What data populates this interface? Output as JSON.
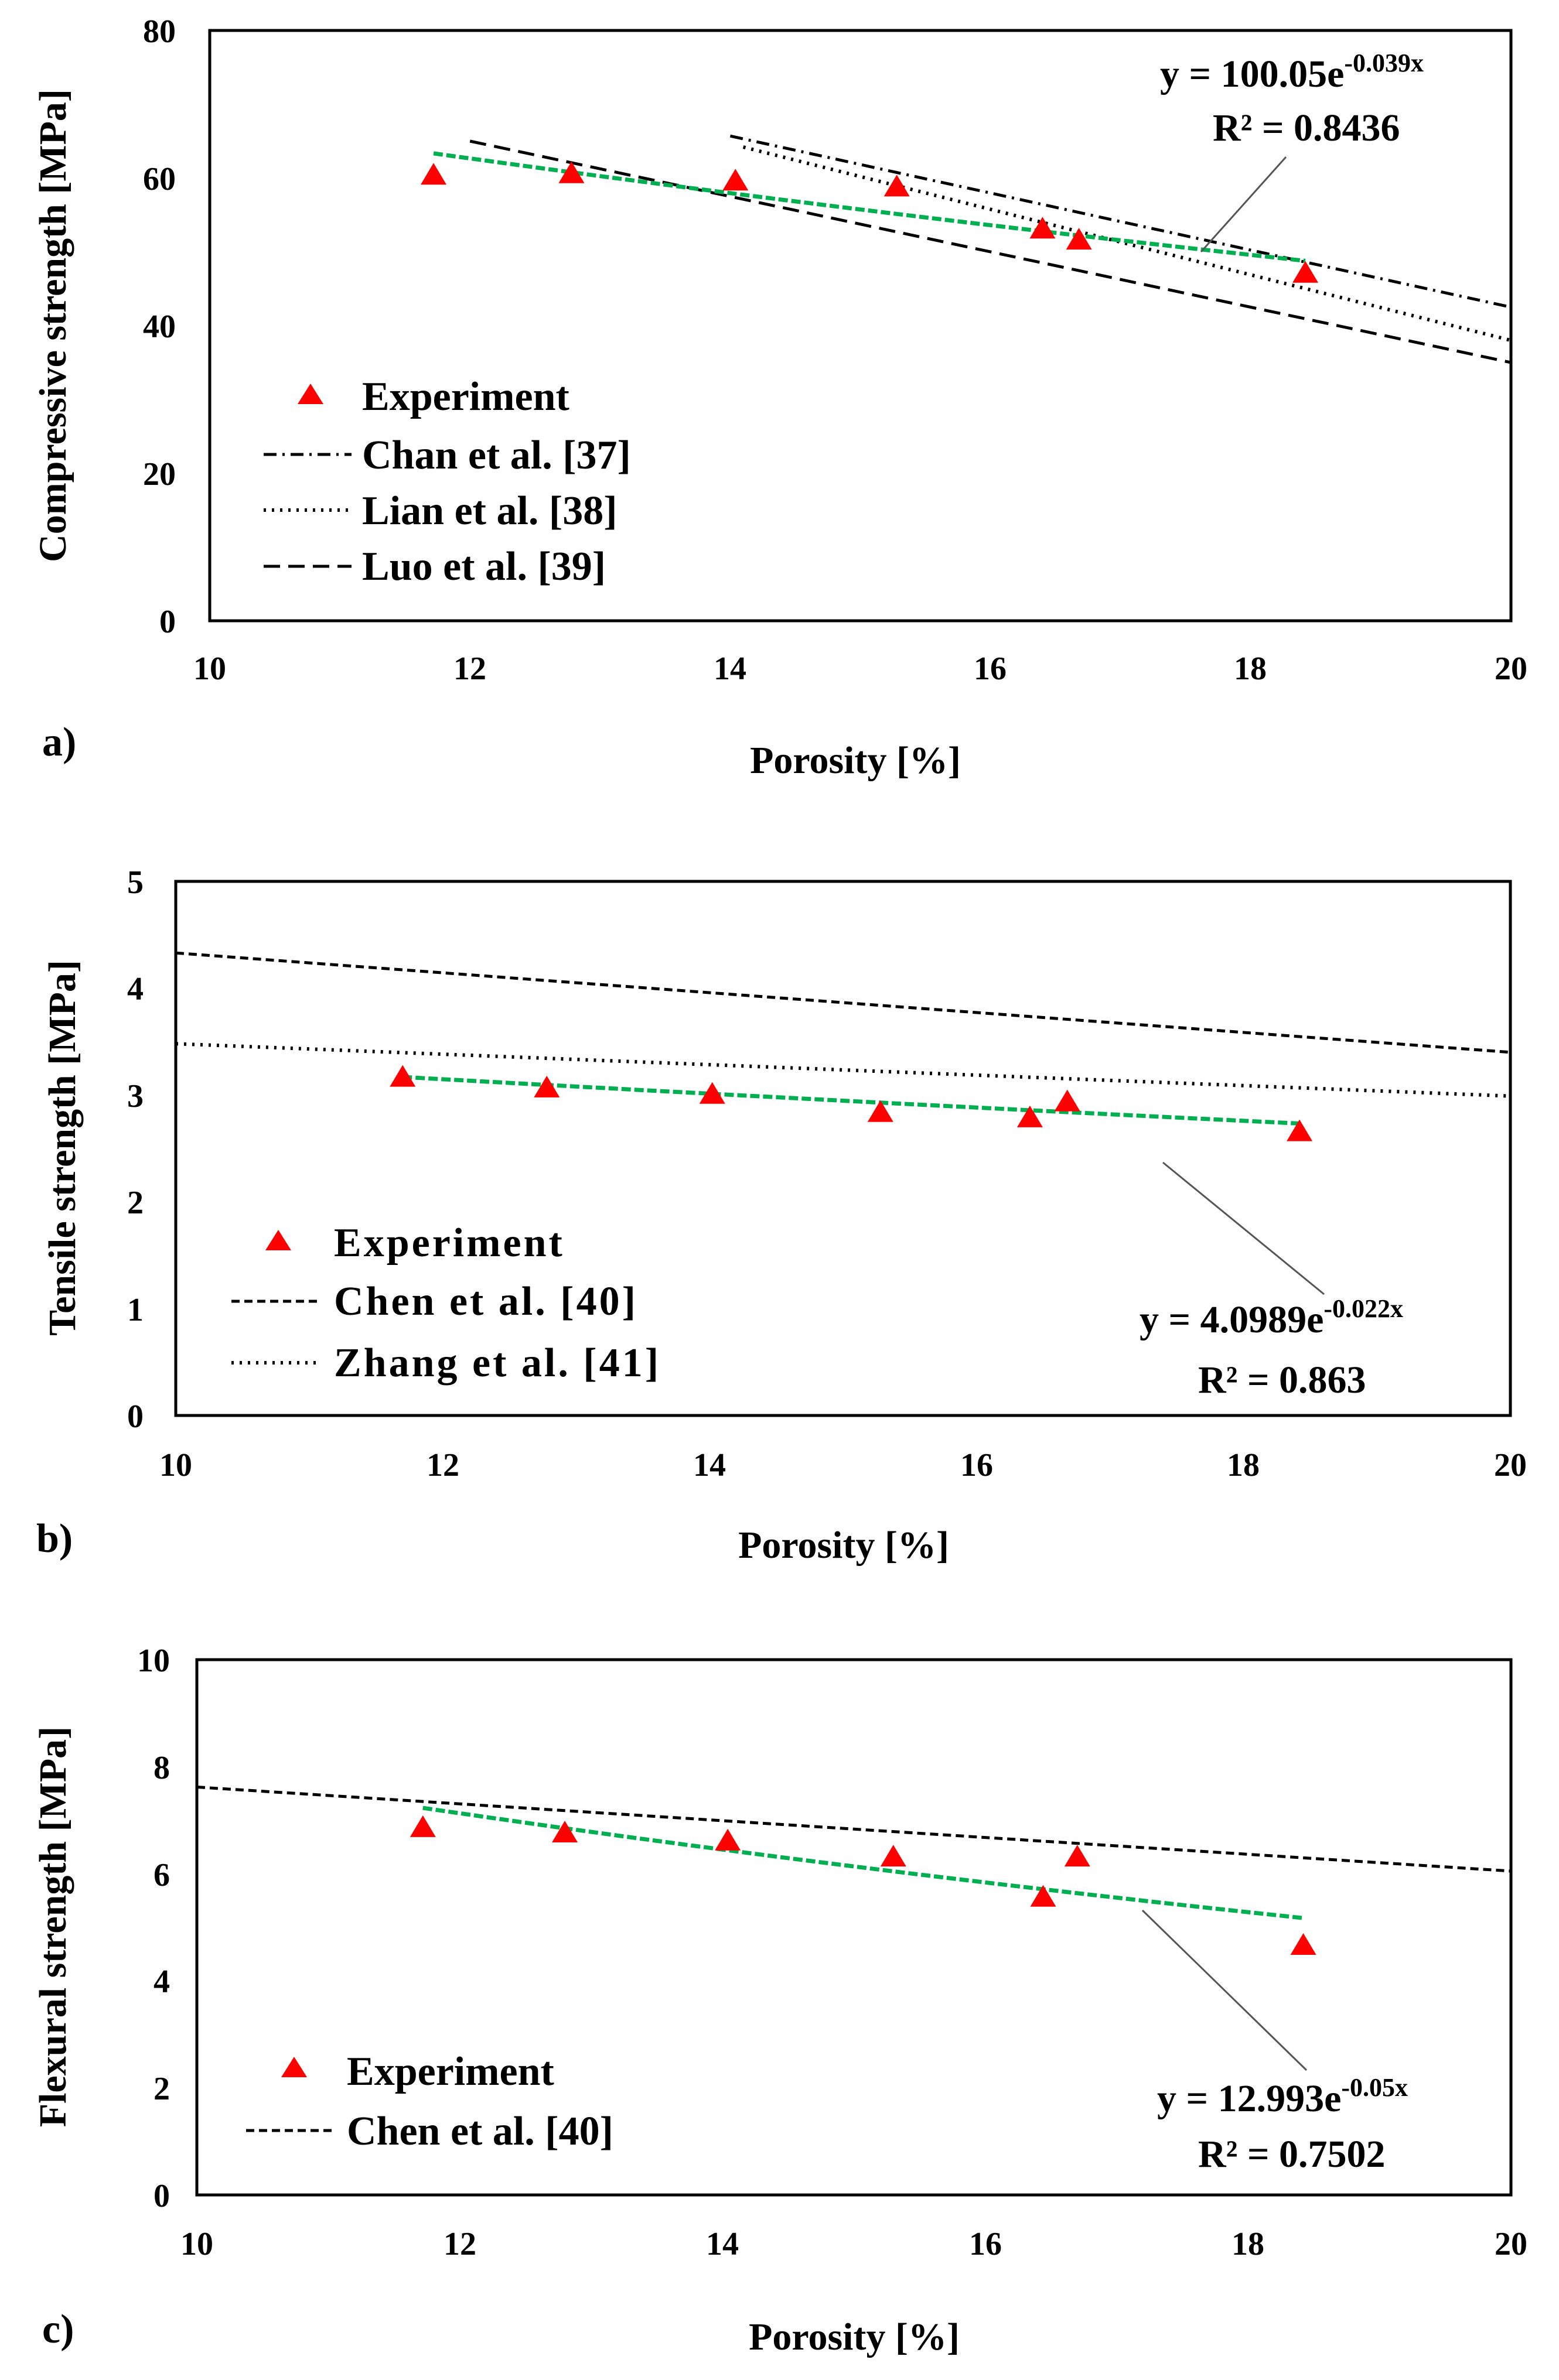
{
  "panels": [
    {
      "panel_label": "a)",
      "annotation": {
        "eq_prefix": "y = 100.05e",
        "eq_exp": "-0.039x",
        "r2": "R² = 0.8436"
      }
    },
    {
      "panel_label": "b)",
      "annotation": {
        "eq_prefix": "y = 4.0989e",
        "eq_exp": "-0.022x",
        "r2": "R² = 0.863"
      }
    },
    {
      "panel_label": "c)",
      "annotation": {
        "eq_prefix": "y = 12.993e",
        "eq_exp": "-0.05x",
        "r2": "R² = 0.7502"
      }
    }
  ],
  "colors": {
    "experiment": "#ff0000",
    "fit": "#00b050",
    "reference": "#000000",
    "axis": "#000000"
  },
  "chart_data": [
    {
      "type": "scatter",
      "title": "",
      "xlabel": "Porosity [%]",
      "ylabel": "Compressive strength  [MPa]",
      "xlim": [
        10,
        20
      ],
      "ylim": [
        0,
        80
      ],
      "xticks": [
        "10",
        "12",
        "14",
        "16",
        "18",
        "20"
      ],
      "yticks": [
        "0",
        "20",
        "40",
        "60",
        "80"
      ],
      "legend_position": "bottom-left",
      "series": [
        {
          "name": "Experiment",
          "kind": "points",
          "x": [
            11.72,
            12.78,
            14.04,
            15.28,
            16.4,
            16.68,
            18.42
          ],
          "y": [
            60.3,
            60.5,
            59.5,
            58.7,
            53.0,
            51.5,
            47.0
          ]
        },
        {
          "name": "Chan et al. [37]",
          "kind": "line",
          "style": "dashdot",
          "x": [
            14.0,
            20.0
          ],
          "y": [
            65.7,
            42.5
          ]
        },
        {
          "name": "Lian et al. [38]",
          "kind": "line",
          "style": "dotted",
          "x": [
            14.1,
            20.0
          ],
          "y": [
            64.2,
            38.0
          ]
        },
        {
          "name": "Luo et al. [39]",
          "kind": "line",
          "style": "dashed",
          "x": [
            12.0,
            20.0
          ],
          "y": [
            65.0,
            35.0
          ]
        }
      ],
      "fit": {
        "a": 100.05,
        "b": -0.039,
        "x_range": [
          11.72,
          18.42
        ]
      }
    },
    {
      "type": "scatter",
      "title": "",
      "xlabel": "Porosity [%]",
      "ylabel": "Tensile strength [MPa]",
      "xlim": [
        10,
        20
      ],
      "ylim": [
        0,
        5
      ],
      "xticks": [
        "10",
        "12",
        "14",
        "16",
        "18",
        "20"
      ],
      "yticks": [
        "0",
        "1",
        "2",
        "3",
        "4",
        "5"
      ],
      "legend_position": "bottom-left",
      "series": [
        {
          "name": "Experiment",
          "kind": "points",
          "x": [
            11.7,
            12.78,
            14.02,
            15.28,
            16.4,
            16.68,
            18.42
          ],
          "y": [
            3.16,
            3.06,
            3.0,
            2.83,
            2.78,
            2.93,
            2.65
          ]
        },
        {
          "name": "Chen et al. [40]",
          "kind": "line",
          "style": "dashed",
          "x": [
            10.0,
            20.0
          ],
          "y": [
            4.33,
            3.4
          ]
        },
        {
          "name": "Zhang et al. [41]",
          "kind": "line",
          "style": "dotted",
          "x": [
            10.0,
            20.0
          ],
          "y": [
            3.48,
            2.99
          ]
        }
      ],
      "fit": {
        "a": 4.0989,
        "b": -0.022,
        "x_range": [
          11.7,
          18.42
        ]
      }
    },
    {
      "type": "scatter",
      "title": "",
      "xlabel": "Porosity [%]",
      "ylabel": "Flexural strength [MPa]",
      "xlim": [
        10,
        20
      ],
      "ylim": [
        0,
        10
      ],
      "xticks": [
        "10",
        "12",
        "14",
        "16",
        "18",
        "20"
      ],
      "yticks": [
        "0",
        "2",
        "4",
        "6",
        "8",
        "10"
      ],
      "legend_position": "bottom-left",
      "series": [
        {
          "name": "Experiment",
          "kind": "points",
          "x": [
            11.72,
            12.8,
            14.04,
            15.3,
            16.44,
            16.7,
            18.42
          ],
          "y": [
            6.85,
            6.75,
            6.6,
            6.3,
            5.55,
            6.3,
            4.65
          ]
        },
        {
          "name": "Chen et al. [40]",
          "kind": "line",
          "style": "dashed",
          "x": [
            10.0,
            20.0
          ],
          "y": [
            7.62,
            6.05
          ]
        }
      ],
      "fit": {
        "a": 12.993,
        "b": -0.05,
        "x_range": [
          11.72,
          18.42
        ]
      }
    }
  ]
}
